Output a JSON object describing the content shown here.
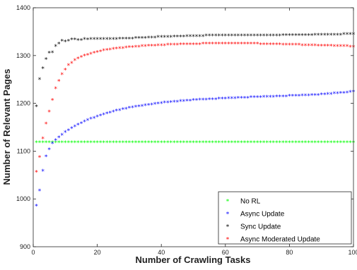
{
  "chart_data": {
    "type": "scatter",
    "title": "",
    "xlabel": "Number of Crawling Tasks",
    "ylabel": "Number of Relevant Pages",
    "xlim": [
      0,
      100
    ],
    "ylim": [
      900,
      1400
    ],
    "xticks": [
      0,
      20,
      40,
      60,
      80,
      100
    ],
    "yticks": [
      900,
      1000,
      1100,
      1200,
      1300,
      1400
    ],
    "grid": false,
    "legend_position": "bottom-right",
    "marker": "*",
    "series": [
      {
        "name": "No RL",
        "color": "#00ff00",
        "x": [
          1,
          2,
          3,
          4,
          5,
          6,
          7,
          8,
          9,
          10,
          11,
          12,
          13,
          14,
          15,
          16,
          17,
          18,
          19,
          20,
          21,
          22,
          23,
          24,
          25,
          26,
          27,
          28,
          29,
          30,
          31,
          32,
          33,
          34,
          35,
          36,
          37,
          38,
          39,
          40,
          41,
          42,
          43,
          44,
          45,
          46,
          47,
          48,
          49,
          50,
          51,
          52,
          53,
          54,
          55,
          56,
          57,
          58,
          59,
          60,
          61,
          62,
          63,
          64,
          65,
          66,
          67,
          68,
          69,
          70,
          71,
          72,
          73,
          74,
          75,
          76,
          77,
          78,
          79,
          80,
          81,
          82,
          83,
          84,
          85,
          86,
          87,
          88,
          89,
          90,
          91,
          92,
          93,
          94,
          95,
          96,
          97,
          98,
          99,
          100
        ],
        "values": [
          1118,
          1118,
          1118,
          1118,
          1118,
          1118,
          1118,
          1118,
          1118,
          1118,
          1118,
          1118,
          1118,
          1118,
          1118,
          1118,
          1118,
          1118,
          1118,
          1118,
          1118,
          1118,
          1118,
          1118,
          1118,
          1118,
          1118,
          1118,
          1118,
          1118,
          1118,
          1118,
          1118,
          1118,
          1118,
          1118,
          1118,
          1118,
          1118,
          1118,
          1118,
          1118,
          1118,
          1118,
          1118,
          1118,
          1118,
          1118,
          1118,
          1118,
          1118,
          1118,
          1118,
          1118,
          1118,
          1118,
          1118,
          1118,
          1118,
          1118,
          1118,
          1118,
          1118,
          1118,
          1118,
          1118,
          1118,
          1118,
          1118,
          1118,
          1118,
          1118,
          1118,
          1118,
          1118,
          1118,
          1118,
          1118,
          1118,
          1118,
          1118,
          1118,
          1118,
          1118,
          1118,
          1118,
          1118,
          1118,
          1118,
          1118,
          1118,
          1118,
          1118,
          1118,
          1118,
          1118,
          1118,
          1118,
          1118,
          1118
        ]
      },
      {
        "name": "Async Update",
        "color": "#0000ff",
        "x": [
          1,
          2,
          3,
          4,
          5,
          6,
          7,
          8,
          9,
          10,
          11,
          12,
          13,
          14,
          15,
          16,
          17,
          18,
          19,
          20,
          21,
          22,
          23,
          24,
          25,
          26,
          27,
          28,
          29,
          30,
          31,
          32,
          33,
          34,
          35,
          36,
          37,
          38,
          39,
          40,
          41,
          42,
          43,
          44,
          45,
          46,
          47,
          48,
          49,
          50,
          51,
          52,
          53,
          54,
          55,
          56,
          57,
          58,
          59,
          60,
          61,
          62,
          63,
          64,
          65,
          66,
          67,
          68,
          69,
          70,
          71,
          72,
          73,
          74,
          75,
          76,
          77,
          78,
          79,
          80,
          81,
          82,
          83,
          84,
          85,
          86,
          87,
          88,
          89,
          90,
          91,
          92,
          93,
          94,
          95,
          96,
          97,
          98,
          99,
          100
        ],
        "values": [
          985,
          1017,
          1058,
          1088,
          1103,
          1116,
          1122,
          1128,
          1133,
          1139,
          1143,
          1147,
          1151,
          1155,
          1158,
          1161,
          1164,
          1167,
          1169,
          1172,
          1174,
          1176,
          1178,
          1180,
          1182,
          1184,
          1185,
          1187,
          1188,
          1190,
          1191,
          1192,
          1193,
          1194,
          1195,
          1196,
          1197,
          1198,
          1199,
          1200,
          1201,
          1201,
          1202,
          1203,
          1203,
          1204,
          1204,
          1205,
          1205,
          1206,
          1206,
          1207,
          1207,
          1207,
          1208,
          1208,
          1208,
          1209,
          1209,
          1209,
          1210,
          1210,
          1210,
          1211,
          1211,
          1211,
          1211,
          1212,
          1212,
          1212,
          1212,
          1213,
          1213,
          1213,
          1213,
          1214,
          1214,
          1214,
          1214,
          1215,
          1215,
          1215,
          1215,
          1216,
          1216,
          1216,
          1217,
          1217,
          1217,
          1218,
          1218,
          1219,
          1219,
          1220,
          1220,
          1221,
          1221,
          1222,
          1223,
          1224
        ]
      },
      {
        "name": "Sync Update",
        "color": "#000000",
        "x": [
          1,
          2,
          3,
          4,
          5,
          6,
          7,
          8,
          9,
          10,
          11,
          12,
          13,
          14,
          15,
          16,
          17,
          18,
          19,
          20,
          21,
          22,
          23,
          24,
          25,
          26,
          27,
          28,
          29,
          30,
          31,
          32,
          33,
          34,
          35,
          36,
          37,
          38,
          39,
          40,
          41,
          42,
          43,
          44,
          45,
          46,
          47,
          48,
          49,
          50,
          51,
          52,
          53,
          54,
          55,
          56,
          57,
          58,
          59,
          60,
          61,
          62,
          63,
          64,
          65,
          66,
          67,
          68,
          69,
          70,
          71,
          72,
          73,
          74,
          75,
          76,
          77,
          78,
          79,
          80,
          81,
          82,
          83,
          84,
          85,
          86,
          87,
          88,
          89,
          90,
          91,
          92,
          93,
          94,
          95,
          96,
          97,
          98,
          99,
          100
        ],
        "values": [
          1193,
          1250,
          1273,
          1292,
          1305,
          1306,
          1319,
          1324,
          1330,
          1329,
          1330,
          1333,
          1333,
          1332,
          1332,
          1334,
          1333,
          1334,
          1334,
          1334,
          1334,
          1334,
          1334,
          1334,
          1334,
          1334,
          1335,
          1335,
          1335,
          1335,
          1335,
          1336,
          1336,
          1336,
          1336,
          1337,
          1337,
          1337,
          1338,
          1338,
          1338,
          1338,
          1338,
          1339,
          1339,
          1339,
          1339,
          1340,
          1340,
          1340,
          1340,
          1340,
          1340,
          1341,
          1341,
          1341,
          1341,
          1341,
          1341,
          1341,
          1341,
          1341,
          1341,
          1341,
          1341,
          1341,
          1341,
          1341,
          1341,
          1341,
          1341,
          1341,
          1341,
          1341,
          1341,
          1341,
          1341,
          1342,
          1342,
          1342,
          1342,
          1342,
          1342,
          1342,
          1342,
          1342,
          1342,
          1343,
          1343,
          1343,
          1343,
          1343,
          1343,
          1343,
          1343,
          1343,
          1344,
          1344,
          1344,
          1344
        ]
      },
      {
        "name": "Async Moderated Update",
        "color": "#ff0000",
        "x": [
          1,
          2,
          3,
          4,
          5,
          6,
          7,
          8,
          9,
          10,
          11,
          12,
          13,
          14,
          15,
          16,
          17,
          18,
          19,
          20,
          21,
          22,
          23,
          24,
          25,
          26,
          27,
          28,
          29,
          30,
          31,
          32,
          33,
          34,
          35,
          36,
          37,
          38,
          39,
          40,
          41,
          42,
          43,
          44,
          45,
          46,
          47,
          48,
          49,
          50,
          51,
          52,
          53,
          54,
          55,
          56,
          57,
          58,
          59,
          60,
          61,
          62,
          63,
          64,
          65,
          66,
          67,
          68,
          69,
          70,
          71,
          72,
          73,
          74,
          75,
          76,
          77,
          78,
          79,
          80,
          81,
          82,
          83,
          84,
          85,
          86,
          87,
          88,
          89,
          90,
          91,
          92,
          93,
          94,
          95,
          96,
          97,
          98,
          99,
          100
        ],
        "values": [
          1056,
          1087,
          1126,
          1157,
          1182,
          1206,
          1231,
          1246,
          1260,
          1270,
          1279,
          1284,
          1290,
          1293,
          1296,
          1299,
          1301,
          1303,
          1305,
          1307,
          1308,
          1310,
          1311,
          1312,
          1313,
          1314,
          1315,
          1315,
          1316,
          1317,
          1317,
          1318,
          1318,
          1319,
          1319,
          1320,
          1320,
          1320,
          1321,
          1321,
          1321,
          1322,
          1322,
          1322,
          1322,
          1323,
          1323,
          1323,
          1323,
          1323,
          1323,
          1323,
          1324,
          1324,
          1324,
          1324,
          1324,
          1324,
          1324,
          1324,
          1324,
          1324,
          1324,
          1324,
          1324,
          1324,
          1324,
          1324,
          1324,
          1324,
          1323,
          1323,
          1323,
          1323,
          1323,
          1323,
          1323,
          1322,
          1322,
          1322,
          1322,
          1322,
          1322,
          1321,
          1321,
          1321,
          1321,
          1321,
          1320,
          1320,
          1320,
          1320,
          1320,
          1319,
          1319,
          1319,
          1319,
          1319,
          1318,
          1318
        ]
      }
    ]
  }
}
